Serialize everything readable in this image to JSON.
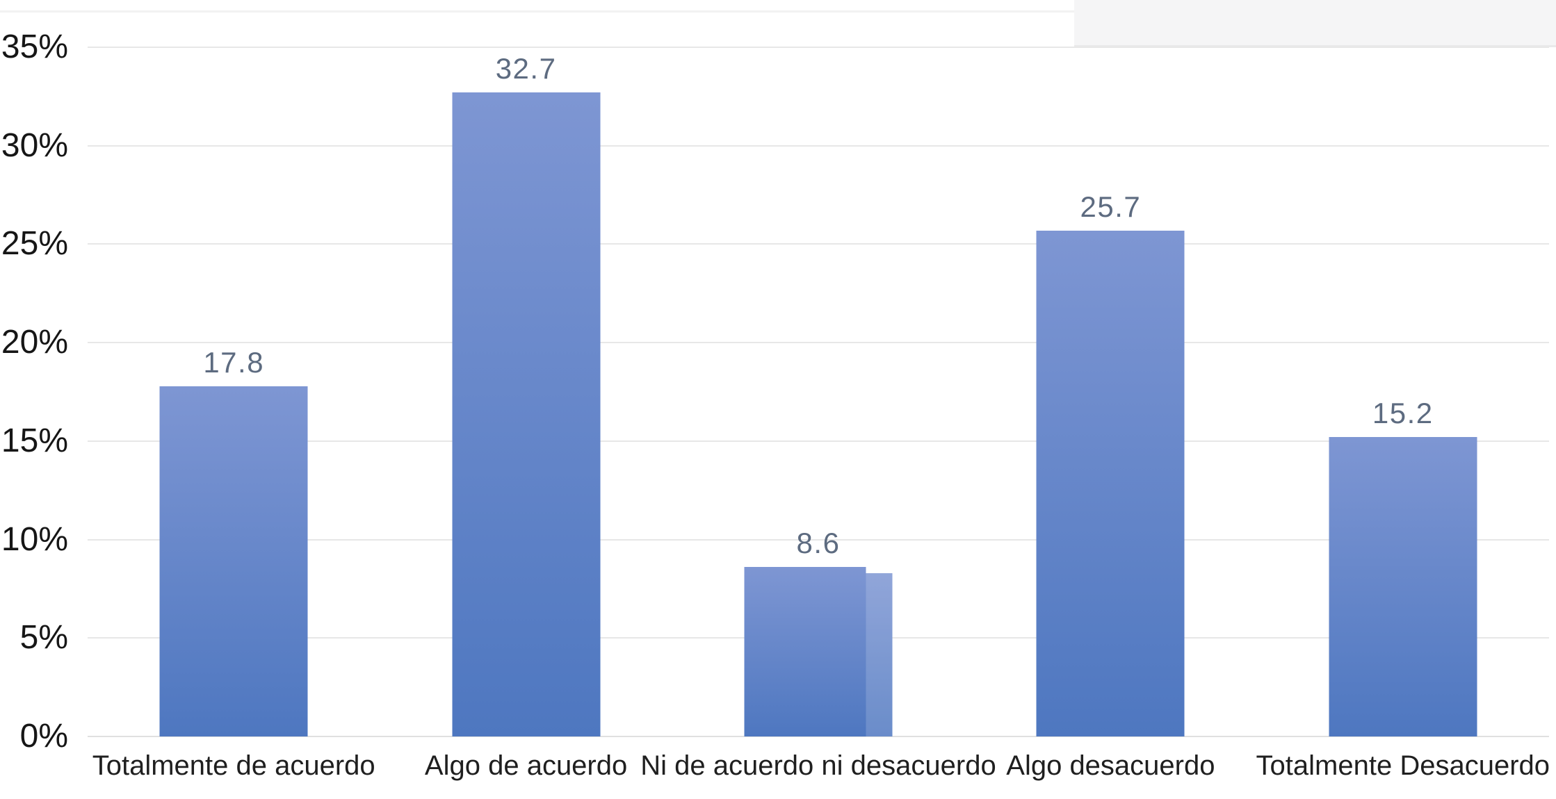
{
  "chart_data": {
    "type": "bar",
    "title": "",
    "categories": [
      "Totalmente de acuerdo",
      "Algo de acuerdo",
      "Ni de acuerdo ni desacuerdo",
      "Algo desacuerdo",
      "Totalmente Desacuerdo"
    ],
    "values": [
      17.8,
      32.7,
      8.6,
      25.7,
      15.2
    ],
    "value_labels": [
      "17.8",
      "32.7",
      "8.6",
      "25.7",
      "15.2"
    ],
    "y_ticks": [
      "0%",
      "5%",
      "10%",
      "15%",
      "20%",
      "25%",
      "30%",
      "35%"
    ],
    "ylim": [
      0,
      35
    ],
    "y_tick_step": 5,
    "xlabel": "",
    "ylabel": "",
    "grid": "horizontal",
    "legend": "none",
    "colors": {
      "bar_gradient_top": "#7e96d3",
      "bar_gradient_bottom": "#4e77c0",
      "value_label": "#5d6b80",
      "axis_text": "#161616",
      "category_text": "#1f1f1f",
      "gridline": "#e7e7e7",
      "background": "#ffffff",
      "corner_shade": "#f5f5f6"
    }
  }
}
